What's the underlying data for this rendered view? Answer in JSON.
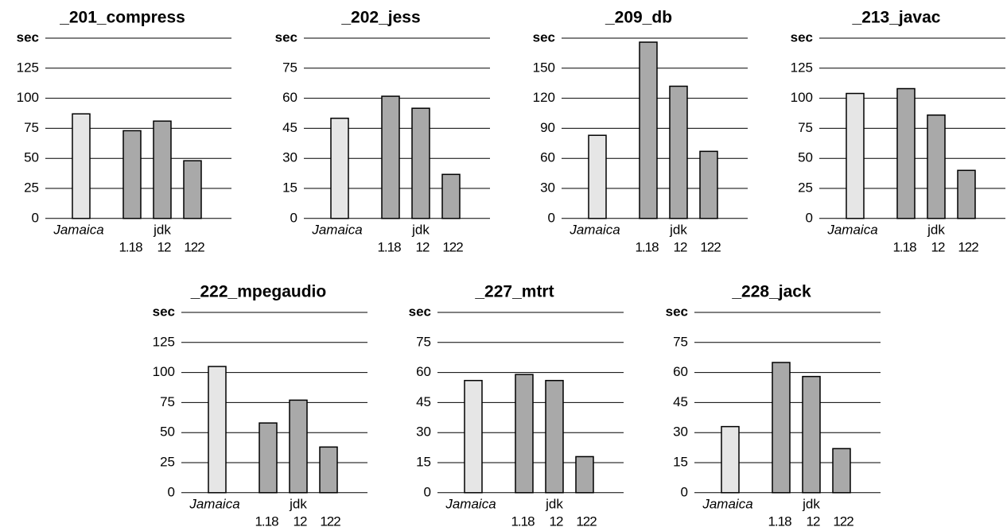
{
  "chart_data": [
    {
      "type": "bar",
      "title": "_201_compress",
      "y_label": "sec",
      "group_label": "jdk",
      "categories": [
        "Jamaica",
        "1.18",
        "12",
        "122"
      ],
      "values": [
        87,
        73,
        81,
        48
      ],
      "colors": [
        "#e6e6e6",
        "#a9a9a9",
        "#a9a9a9",
        "#a9a9a9"
      ],
      "ylim": [
        0,
        150
      ],
      "yticks": [
        0,
        25,
        50,
        75,
        100,
        125
      ],
      "grid": true
    },
    {
      "type": "bar",
      "title": "_202_jess",
      "y_label": "sec",
      "group_label": "jdk",
      "categories": [
        "Jamaica",
        "1.18",
        "12",
        "122"
      ],
      "values": [
        50,
        61,
        55,
        22
      ],
      "colors": [
        "#e6e6e6",
        "#a9a9a9",
        "#a9a9a9",
        "#a9a9a9"
      ],
      "ylim": [
        0,
        90
      ],
      "yticks": [
        0,
        15,
        30,
        45,
        60,
        75
      ],
      "grid": true
    },
    {
      "type": "bar",
      "title": "_209_db",
      "y_label": "sec",
      "group_label": "jdk",
      "categories": [
        "Jamaica",
        "1.18",
        "12",
        "122"
      ],
      "values": [
        83,
        176,
        132,
        67
      ],
      "colors": [
        "#e6e6e6",
        "#a9a9a9",
        "#a9a9a9",
        "#a9a9a9"
      ],
      "ylim": [
        0,
        180
      ],
      "yticks": [
        0,
        30,
        60,
        90,
        120,
        150
      ],
      "grid": true
    },
    {
      "type": "bar",
      "title": "_213_javac",
      "y_label": "sec",
      "group_label": "jdk",
      "categories": [
        "Jamaica",
        "1.18",
        "12",
        "122"
      ],
      "values": [
        104,
        108,
        86,
        40
      ],
      "colors": [
        "#e6e6e6",
        "#a9a9a9",
        "#a9a9a9",
        "#a9a9a9"
      ],
      "ylim": [
        0,
        150
      ],
      "yticks": [
        0,
        25,
        50,
        75,
        100,
        125
      ],
      "grid": true
    },
    {
      "type": "bar",
      "title": "_222_mpegaudio",
      "y_label": "sec",
      "group_label": "jdk",
      "categories": [
        "Jamaica",
        "1.18",
        "12",
        "122"
      ],
      "values": [
        105,
        58,
        77,
        38
      ],
      "colors": [
        "#e6e6e6",
        "#a9a9a9",
        "#a9a9a9",
        "#a9a9a9"
      ],
      "ylim": [
        0,
        150
      ],
      "yticks": [
        0,
        25,
        50,
        75,
        100,
        125
      ],
      "grid": true
    },
    {
      "type": "bar",
      "title": "_227_mtrt",
      "y_label": "sec",
      "group_label": "jdk",
      "categories": [
        "Jamaica",
        "1.18",
        "12",
        "122"
      ],
      "values": [
        56,
        59,
        56,
        18
      ],
      "colors": [
        "#e6e6e6",
        "#a9a9a9",
        "#a9a9a9",
        "#a9a9a9"
      ],
      "ylim": [
        0,
        90
      ],
      "yticks": [
        0,
        15,
        30,
        45,
        60,
        75
      ],
      "grid": true
    },
    {
      "type": "bar",
      "title": "_228_jack",
      "y_label": "sec",
      "group_label": "jdk",
      "categories": [
        "Jamaica",
        "1.18",
        "12",
        "122"
      ],
      "values": [
        33,
        65,
        58,
        22
      ],
      "colors": [
        "#e6e6e6",
        "#a9a9a9",
        "#a9a9a9",
        "#a9a9a9"
      ],
      "ylim": [
        0,
        90
      ],
      "yticks": [
        0,
        15,
        30,
        45,
        60,
        75
      ],
      "grid": true
    }
  ]
}
